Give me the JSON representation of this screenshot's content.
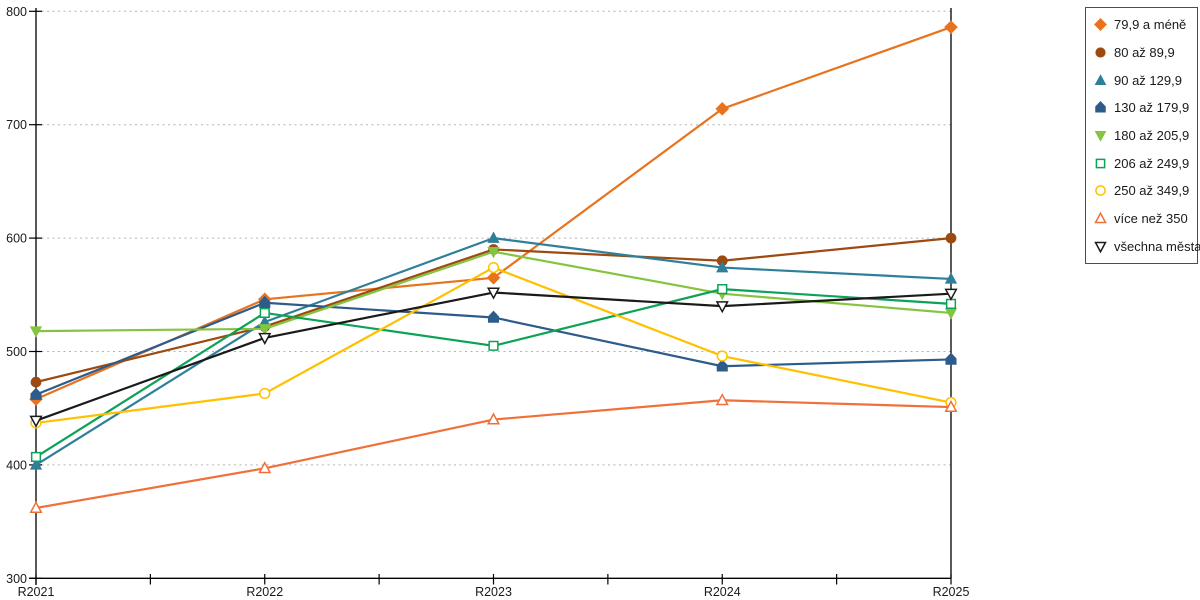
{
  "chart_data": {
    "type": "line",
    "title": "",
    "xlabel": "",
    "ylabel": "",
    "categories": [
      "R2021",
      "R2022",
      "R2023",
      "R2024",
      "R2025"
    ],
    "series": [
      {
        "name": "79,9 a méně",
        "color": "#E8731E",
        "marker": "diamond",
        "marker_fill": "filled",
        "values": [
          458,
          546,
          565,
          714,
          786
        ]
      },
      {
        "name": "80 až 89,9",
        "color": "#9C4A10",
        "marker": "circle",
        "marker_fill": "filled",
        "values": [
          473,
          522,
          590,
          580,
          600
        ]
      },
      {
        "name": "90 až 129,9",
        "color": "#2E7F99",
        "marker": "triangle-up",
        "marker_fill": "filled",
        "values": [
          400,
          526,
          600,
          574,
          564
        ]
      },
      {
        "name": "130 až 179,9",
        "color": "#2E5C8A",
        "marker": "pentagon",
        "marker_fill": "filled",
        "values": [
          462,
          543,
          530,
          487,
          493
        ]
      },
      {
        "name": "180 až 205,9",
        "color": "#84C441",
        "marker": "triangle-down",
        "marker_fill": "filled",
        "values": [
          518,
          520,
          588,
          551,
          534
        ]
      },
      {
        "name": "206 až 249,9",
        "color": "#0CA257",
        "marker": "square",
        "marker_fill": "hollow",
        "values": [
          407,
          534,
          505,
          555,
          542
        ]
      },
      {
        "name": "250 až 349,9",
        "color": "#FFC000",
        "marker": "circle",
        "marker_fill": "hollow",
        "values": [
          437,
          463,
          574,
          496,
          455
        ]
      },
      {
        "name": "více než 350",
        "color": "#F0703A",
        "marker": "triangle-up",
        "marker_fill": "hollow",
        "values": [
          362,
          397,
          440,
          457,
          451
        ]
      },
      {
        "name": "všechna města",
        "color": "#1A1A1A",
        "marker": "triangle-down",
        "marker_fill": "hollow",
        "values": [
          439,
          512,
          552,
          540,
          551
        ]
      }
    ],
    "ylim": [
      300,
      800
    ],
    "yticks": [
      300,
      400,
      500,
      600,
      700,
      800
    ],
    "x_minor_ticks_between": true,
    "grid": "horizontal-dashed",
    "grid_color": "#B3B3B3",
    "axis_color": "#000000",
    "tick_label_color": "#1A1A1A",
    "legend_position": "right",
    "legend_border_color": "#4D4D4D"
  }
}
